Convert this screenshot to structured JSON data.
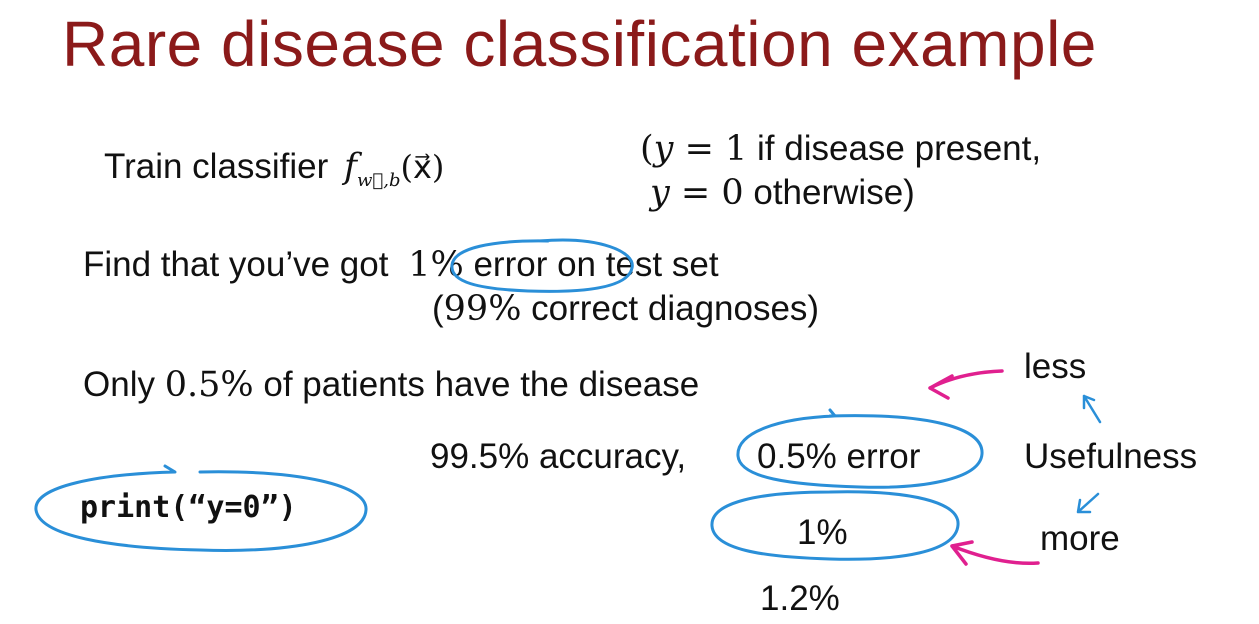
{
  "title": "Rare disease classification example",
  "train": {
    "label": "Train classifier",
    "func": "f",
    "func_sub": "w⃗,b",
    "func_arg": "(x⃗)"
  },
  "label_def": {
    "line1_open": "(",
    "line1_var": "y",
    "line1_eq": " = 1",
    "line1_text": " if disease present,",
    "line2_var": "y",
    "line2_eq": " = 0",
    "line2_text": " otherwise)"
  },
  "finding": {
    "pre": "Find that you’ve got",
    "error_num": "1%",
    "error_word": " error",
    "post": " on test set",
    "sub_open": "(",
    "sub_num": "99%",
    "sub_text": " correct diagnoses)"
  },
  "prevalence": {
    "pre": "Only ",
    "num": "0.5%",
    "post": " of patients have the disease"
  },
  "accuracy": {
    "text": "99.5% accuracy,",
    "error": "0.5% error"
  },
  "code": "print(“y=0”)",
  "alternatives": {
    "one": "1%",
    "two": "1.2%"
  },
  "usefulness": {
    "less": "less",
    "label": "Usefulness",
    "more": "more"
  },
  "colors": {
    "title": "#8b1a1a",
    "circle": "#2a8fd8",
    "arrow_pink": "#e0208f",
    "arrow_blue": "#2a8fd8"
  }
}
